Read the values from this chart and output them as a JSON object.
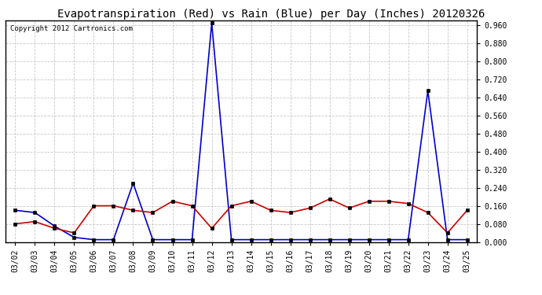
{
  "title": "Evapotranspiration (Red) vs Rain (Blue) per Day (Inches) 20120326",
  "copyright": "Copyright 2012 Cartronics.com",
  "dates": [
    "03/02",
    "03/03",
    "03/04",
    "03/05",
    "03/06",
    "03/07",
    "03/08",
    "03/09",
    "03/10",
    "03/11",
    "03/12",
    "03/13",
    "03/14",
    "03/15",
    "03/16",
    "03/17",
    "03/18",
    "03/19",
    "03/20",
    "03/21",
    "03/22",
    "03/23",
    "03/24",
    "03/25"
  ],
  "rain_blue": [
    0.14,
    0.13,
    0.07,
    0.02,
    0.01,
    0.01,
    0.26,
    0.01,
    0.01,
    0.01,
    0.97,
    0.01,
    0.01,
    0.01,
    0.01,
    0.01,
    0.01,
    0.01,
    0.01,
    0.01,
    0.01,
    0.67,
    0.01,
    0.01
  ],
  "et_red": [
    0.08,
    0.09,
    0.06,
    0.04,
    0.16,
    0.16,
    0.14,
    0.13,
    0.18,
    0.16,
    0.06,
    0.16,
    0.18,
    0.14,
    0.13,
    0.15,
    0.19,
    0.15,
    0.18,
    0.18,
    0.17,
    0.13,
    0.04,
    0.14
  ],
  "ylim": [
    0.0,
    0.98
  ],
  "yticks": [
    0.0,
    0.08,
    0.16,
    0.24,
    0.32,
    0.4,
    0.48,
    0.56,
    0.64,
    0.72,
    0.8,
    0.88,
    0.96
  ],
  "blue_color": "#0000cc",
  "red_color": "#cc0000",
  "bg_color": "#ffffff",
  "grid_color": "#bbbbbb",
  "title_fontsize": 10,
  "copyright_fontsize": 6.5
}
